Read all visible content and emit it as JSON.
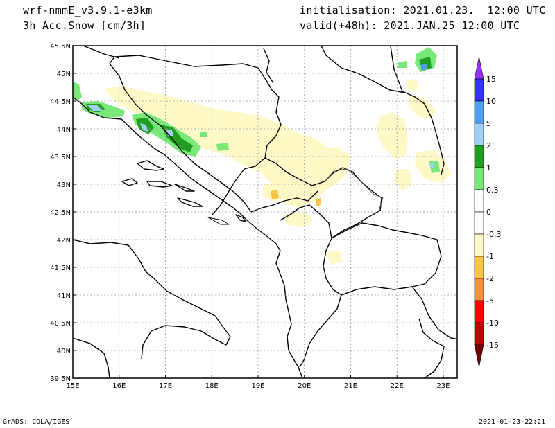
{
  "header": {
    "model": "wrf-nmmE_v3.9.1-e3km",
    "variable": "3h Acc.Snow [cm/3h]",
    "init": "initialisation: 2021.01.23.  12:00 UTC",
    "valid": "valid(+48h): 2021.JAN.25 12:00 UTC"
  },
  "footer": {
    "credit": "GrADS: COLA/IGES",
    "timestamp": "2021-01-23-22:21"
  },
  "map": {
    "lon_range": [
      15,
      23.3
    ],
    "lat_range": [
      39.5,
      45.5
    ],
    "x_ticks": [
      {
        "lon": 15,
        "label": "15E"
      },
      {
        "lon": 16,
        "label": "16E"
      },
      {
        "lon": 17,
        "label": "17E"
      },
      {
        "lon": 18,
        "label": "18E"
      },
      {
        "lon": 19,
        "label": "19E"
      },
      {
        "lon": 20,
        "label": "20E"
      },
      {
        "lon": 21,
        "label": "21E"
      },
      {
        "lon": 22,
        "label": "22E"
      },
      {
        "lon": 23,
        "label": "23E"
      }
    ],
    "y_ticks": [
      {
        "lat": 45.5,
        "label": "45.5N"
      },
      {
        "lat": 45,
        "label": "45N"
      },
      {
        "lat": 44.5,
        "label": "44.5N"
      },
      {
        "lat": 44,
        "label": "44N"
      },
      {
        "lat": 43.5,
        "label": "43.5N"
      },
      {
        "lat": 43,
        "label": "43N"
      },
      {
        "lat": 42.5,
        "label": "42.5N"
      },
      {
        "lat": 42,
        "label": "42N"
      },
      {
        "lat": 41.5,
        "label": "41.5N"
      },
      {
        "lat": 41,
        "label": "41N"
      },
      {
        "lat": 40.5,
        "label": "40.5N"
      },
      {
        "lat": 40,
        "label": "40N"
      },
      {
        "lat": 39.5,
        "label": "39.5N"
      }
    ],
    "grid": true
  },
  "colorbar": {
    "top_color": "#9b30ff",
    "bottom_color": "#7a0000",
    "segments": [
      {
        "color": "#3333ff"
      },
      {
        "color": "#4f9ff0"
      },
      {
        "color": "#a0d0f8"
      },
      {
        "color": "#1f9e1f"
      },
      {
        "color": "#78e878"
      },
      {
        "color": "#ffffff"
      },
      {
        "color": "#ffffff"
      },
      {
        "color": "#fff9c8"
      },
      {
        "color": "#f5c545"
      },
      {
        "color": "#f99040"
      },
      {
        "color": "#ff0000"
      },
      {
        "color": "#c00000"
      }
    ],
    "labels": [
      "15",
      "10",
      "5",
      "2",
      "1",
      "0.3",
      "0",
      "-0.3",
      "-1",
      "-2",
      "-5",
      "-10",
      "-15"
    ]
  },
  "colors": {
    "snow_light": "#fff9c8",
    "snow_green_light": "#78e878",
    "snow_green": "#1f9e1f",
    "snow_blue_light": "#a0d0f8",
    "snow_blue": "#4f9ff0",
    "orange": "#f5c545"
  }
}
